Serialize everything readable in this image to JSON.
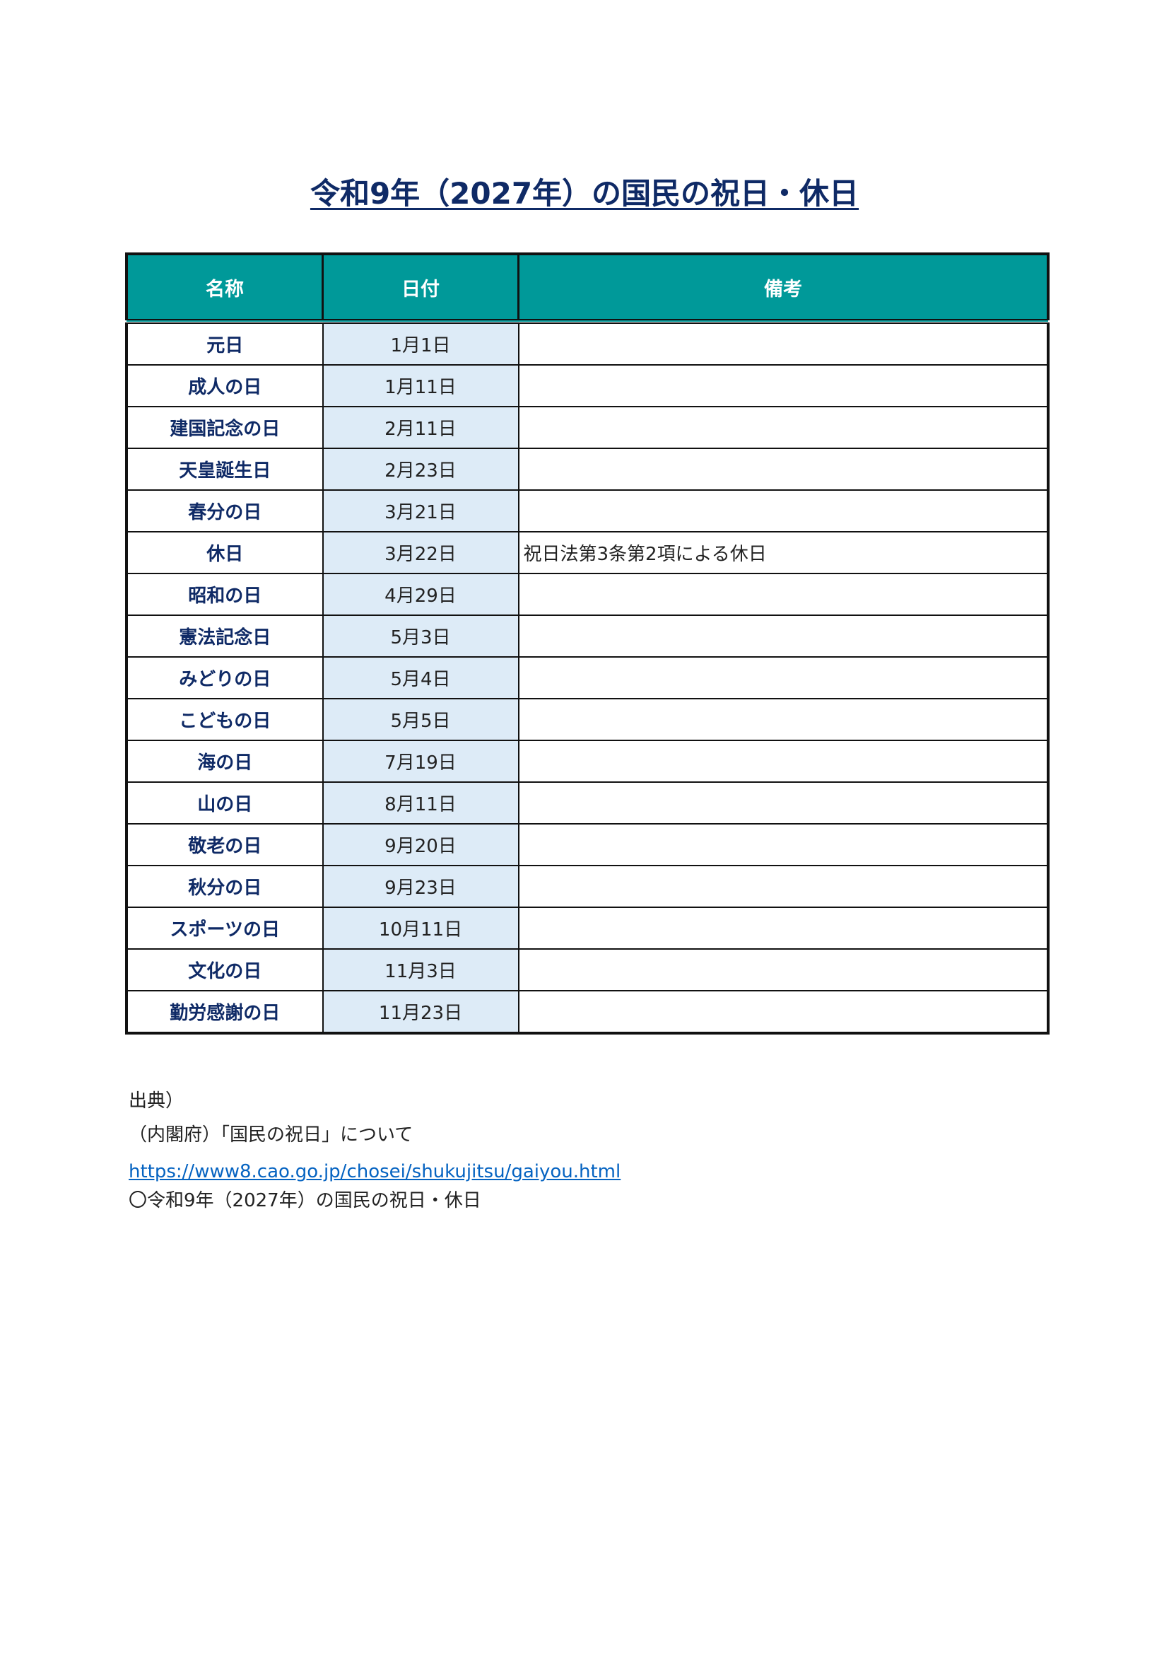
{
  "title": "令和9年（2027年）の国民の祝日・休日",
  "table": {
    "headers": [
      "名称",
      "日付",
      "備考"
    ],
    "rows": [
      {
        "name": "元日",
        "date": "1月1日",
        "note": ""
      },
      {
        "name": "成人の日",
        "date": "1月11日",
        "note": ""
      },
      {
        "name": "建国記念の日",
        "date": "2月11日",
        "note": ""
      },
      {
        "name": "天皇誕生日",
        "date": "2月23日",
        "note": ""
      },
      {
        "name": "春分の日",
        "date": "3月21日",
        "note": ""
      },
      {
        "name": "休日",
        "date": "3月22日",
        "note": "祝日法第3条第2項による休日"
      },
      {
        "name": "昭和の日",
        "date": "4月29日",
        "note": ""
      },
      {
        "name": "憲法記念日",
        "date": "5月3日",
        "note": ""
      },
      {
        "name": "みどりの日",
        "date": "5月4日",
        "note": ""
      },
      {
        "name": "こどもの日",
        "date": "5月5日",
        "note": ""
      },
      {
        "name": "海の日",
        "date": "7月19日",
        "note": ""
      },
      {
        "name": "山の日",
        "date": "8月11日",
        "note": ""
      },
      {
        "name": "敬老の日",
        "date": "9月20日",
        "note": ""
      },
      {
        "name": "秋分の日",
        "date": "9月23日",
        "note": ""
      },
      {
        "name": "スポーツの日",
        "date": "10月11日",
        "note": ""
      },
      {
        "name": "文化の日",
        "date": "11月3日",
        "note": ""
      },
      {
        "name": "勤労感謝の日",
        "date": "11月23日",
        "note": ""
      }
    ]
  },
  "footer": {
    "source_label": "出典）",
    "source": "（内閣府）「国民の祝日」について",
    "url": "https://www8.cao.go.jp/chosei/shukujitsu/gaiyou.html",
    "item": "〇令和9年（2027年）の国民の祝日・休日"
  },
  "colors": {
    "header_bg": "#009999",
    "date_bg": "#ddebf7",
    "title": "#0f2a66",
    "link": "#0563c1"
  }
}
